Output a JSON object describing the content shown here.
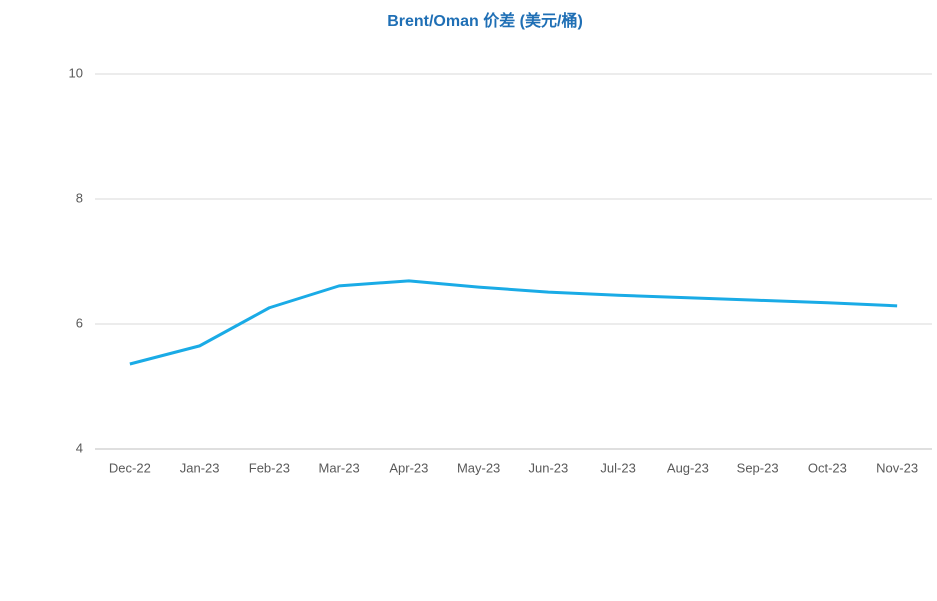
{
  "chart_data": {
    "type": "line",
    "title": "Brent/Oman 价差 (美元/桶)",
    "categories": [
      "Dec-22",
      "Jan-23",
      "Feb-23",
      "Mar-23",
      "Apr-23",
      "May-23",
      "Jun-23",
      "Jul-23",
      "Aug-23",
      "Sep-23",
      "Oct-23",
      "Nov-23"
    ],
    "series": [
      {
        "color": "#1aabe6",
        "values": [
          5.36,
          5.65,
          6.26,
          6.61,
          6.69,
          6.59,
          6.51,
          6.46,
          6.42,
          6.38,
          6.34,
          6.29
        ]
      }
    ],
    "ylim": [
      4,
      10
    ],
    "yticks": [
      4,
      6,
      8,
      10
    ],
    "grid": true
  }
}
